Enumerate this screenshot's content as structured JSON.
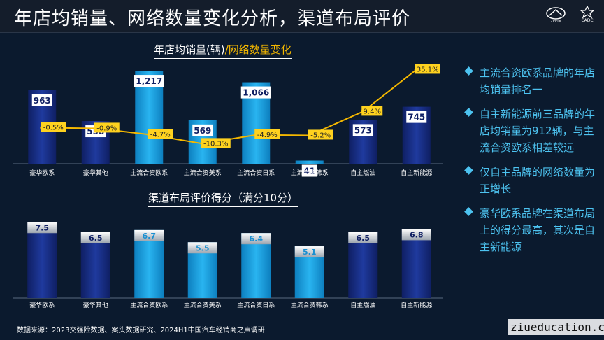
{
  "header": {
    "title": "年店均销量、网络数量变化分析，渠道布局评价",
    "logo1_text": "ZEEDI",
    "logo2_text": "CADC"
  },
  "colors": {
    "bar_dark": "#1f3a9e",
    "bar_light": "#29b4f0",
    "line": "#f5b800",
    "label_box": "#ffd21f",
    "accent": "#4dc3f0"
  },
  "chart_data": [
    {
      "type": "bar",
      "title_part1": "年店均销量(辆)",
      "title_sep": "/",
      "title_part2": "网络数量变化",
      "categories": [
        "豪华欧系",
        "豪华其他",
        "主流合资欧系",
        "主流合资美系",
        "主流合资日系",
        "主流合资韩系",
        "自主燃油",
        "自主新能源"
      ],
      "bar_styles": [
        "dark",
        "dark",
        "light",
        "light",
        "light",
        "light",
        "dark",
        "dark"
      ],
      "values": [
        963,
        558,
        1217,
        569,
        1066,
        41,
        573,
        745
      ],
      "value_labels": [
        "963",
        "558",
        "1,217",
        "569",
        "1,066",
        "41",
        "573",
        "745"
      ],
      "line_series": {
        "name": "网络数量变化",
        "values": [
          -0.5,
          -0.9,
          -4.7,
          -10.3,
          -4.9,
          -5.2,
          9.4,
          35.1
        ],
        "labels": [
          "-0.5%",
          "-0.9%",
          "-4.7%",
          "-10.3%",
          "-4.9%",
          "-5.2%",
          "9.4%",
          "35.1%"
        ]
      },
      "ylim": [
        0,
        1300
      ],
      "line_ylim": [
        -20,
        40
      ]
    },
    {
      "type": "bar",
      "title": "渠道布局评价得分（满分10分）",
      "categories": [
        "豪华欧系",
        "豪华其他",
        "主流合资欧系",
        "主流合资美系",
        "主流合资日系",
        "主流合资韩系",
        "自主燃油",
        "自主新能源"
      ],
      "bar_styles": [
        "dark",
        "dark",
        "light",
        "light",
        "light",
        "light",
        "dark",
        "dark"
      ],
      "values": [
        7.5,
        6.5,
        6.7,
        5.5,
        6.4,
        5.1,
        6.5,
        6.8
      ],
      "value_labels": [
        "7.5",
        "6.5",
        "6.7",
        "5.5",
        "6.4",
        "5.1",
        "6.5",
        "6.8"
      ],
      "ylim": [
        0,
        8
      ]
    }
  ],
  "bullets": [
    "主流合资欧系品牌的年店均销量排名一",
    "自主新能源前三品牌的年店均销量为912辆，与主流合资欧系相差较远",
    "仅自主品牌的网络数量为正增长",
    "豪华欧系品牌在渠道布局上的得分最高，其次是自主新能源"
  ],
  "source": "数据来源：2023交强险数据、案头数据研究、2024H1中国汽车经销商之声调研",
  "watermark": "ziueducation.com"
}
